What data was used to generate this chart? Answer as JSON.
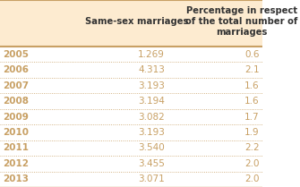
{
  "years": [
    "2005",
    "2006",
    "2007",
    "2008",
    "2009",
    "2010",
    "2011",
    "2012",
    "2013"
  ],
  "same_sex": [
    "1.269",
    "4.313",
    "3.193",
    "3.194",
    "3.082",
    "3.193",
    "3.540",
    "3.455",
    "3.071"
  ],
  "percentage": [
    "0.6",
    "2.1",
    "1.6",
    "1.6",
    "1.7",
    "1.9",
    "2.2",
    "2.0",
    "2.0"
  ],
  "col1_header": "Same-sex marriages",
  "col2_header": "Percentage in respect\nof the total number of\nmarriages",
  "header_bg": "#fdebd0",
  "row_bg_odd": "#ffffff",
  "row_bg_even": "#ffffff",
  "border_color": "#c8a064",
  "text_color_year": "#c8a064",
  "text_color_data": "#c8a064",
  "header_text_color": "#4a4a4a",
  "dotted_line_color": "#c8a064"
}
